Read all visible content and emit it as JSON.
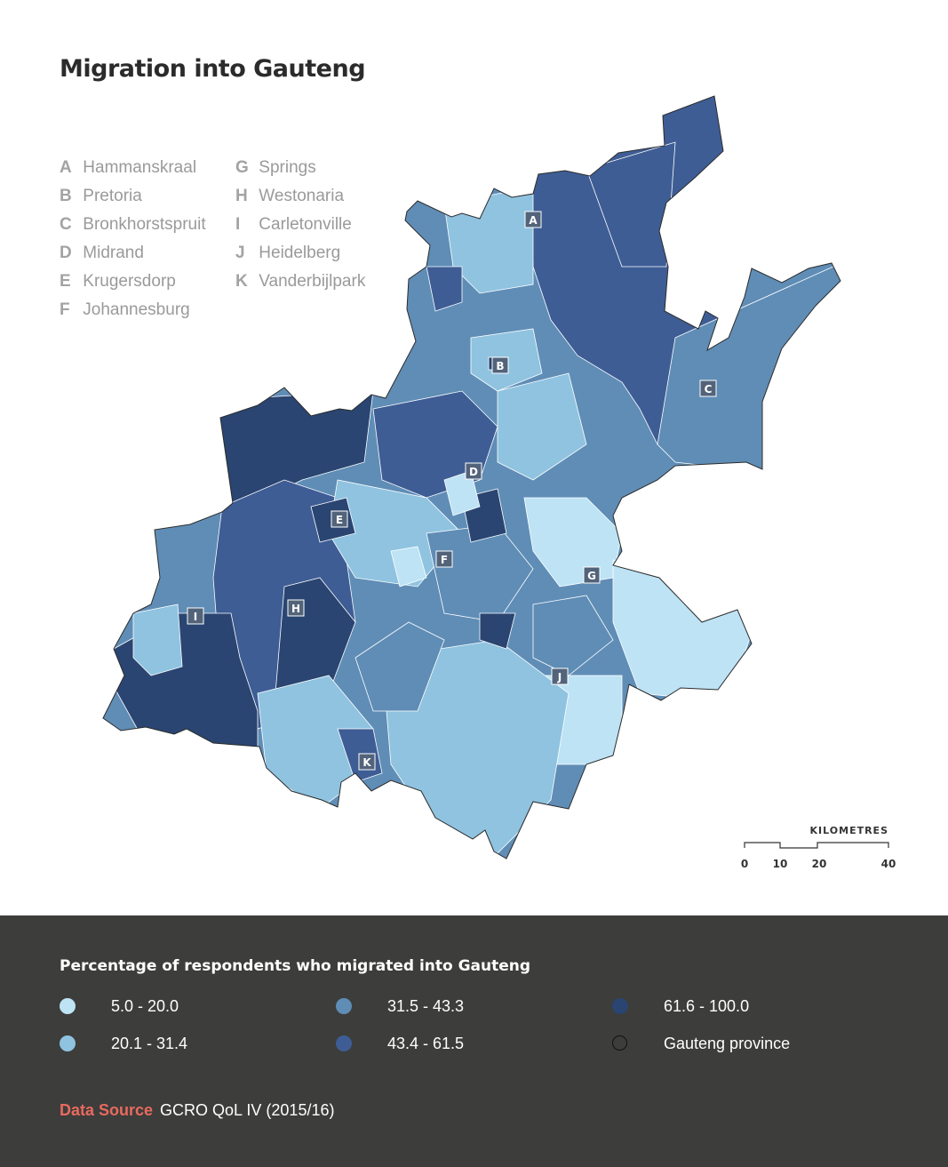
{
  "title": "Migration into Gauteng",
  "key": {
    "col1": [
      {
        "letter": "A",
        "name": "Hammanskraal"
      },
      {
        "letter": "B",
        "name": "Pretoria"
      },
      {
        "letter": "C",
        "name": "Bronkhorstspruit"
      },
      {
        "letter": "D",
        "name": "Midrand"
      },
      {
        "letter": "E",
        "name": "Krugersdorp"
      },
      {
        "letter": "F",
        "name": "Johannesburg"
      }
    ],
    "col2": [
      {
        "letter": "G",
        "name": "Springs"
      },
      {
        "letter": "H",
        "name": "Westonaria"
      },
      {
        "letter": "I",
        "name": "Carletonville"
      },
      {
        "letter": "J",
        "name": "Heidelberg"
      },
      {
        "letter": "K",
        "name": "Vanderbijlpark"
      }
    ]
  },
  "markers": [
    "A",
    "B",
    "C",
    "D",
    "E",
    "F",
    "G",
    "H",
    "I",
    "J",
    "K"
  ],
  "scale": {
    "title": "KILOMETRES",
    "ticks": [
      "0",
      "10",
      "20",
      "40"
    ]
  },
  "legend": {
    "title": "Percentage of respondents who migrated into Gauteng",
    "items": [
      {
        "label": "5.0 - 20.0",
        "color": "#bde3f5"
      },
      {
        "label": "20.1 - 31.4",
        "color": "#8fc3e0"
      },
      {
        "label": "31.5 - 43.3",
        "color": "#5f8db6"
      },
      {
        "label": "43.4 - 61.5",
        "color": "#3e5d95"
      },
      {
        "label": "61.6 - 100.0",
        "color": "#2a4571"
      },
      {
        "label": "Gauteng province",
        "color": "none"
      }
    ]
  },
  "source": {
    "label": "Data Source",
    "text": "GCRO QoL IV (2015/16)"
  }
}
